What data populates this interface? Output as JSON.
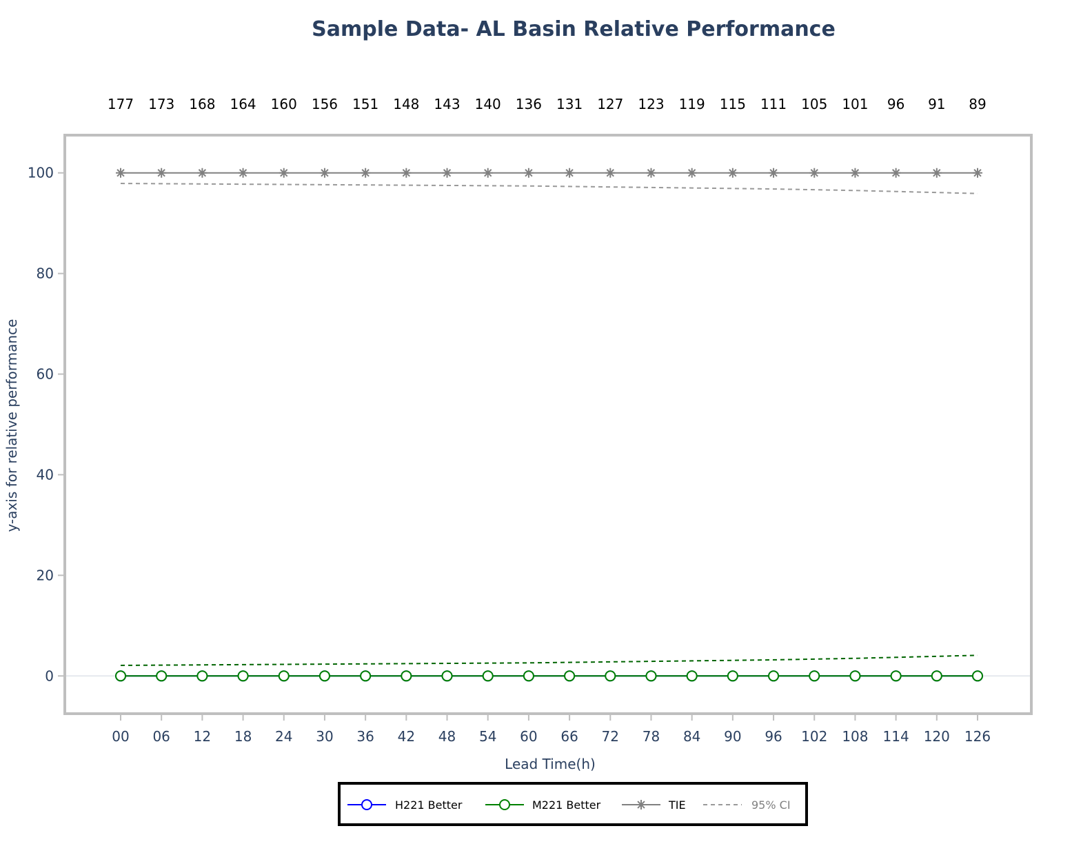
{
  "chart_data": {
    "type": "line",
    "title": "Sample Data- AL Basin Relative Performance",
    "xlabel": "Lead Time(h)",
    "ylabel": "y-axis for relative performance",
    "categories": [
      "00",
      "06",
      "12",
      "18",
      "24",
      "30",
      "36",
      "42",
      "48",
      "54",
      "60",
      "66",
      "72",
      "78",
      "84",
      "90",
      "96",
      "102",
      "108",
      "114",
      "120",
      "126"
    ],
    "top_counts": [
      "177",
      "173",
      "168",
      "164",
      "160",
      "156",
      "151",
      "148",
      "143",
      "140",
      "136",
      "131",
      "127",
      "123",
      "119",
      "115",
      "111",
      "105",
      "101",
      "96",
      "91",
      "89"
    ],
    "ylim": [
      -7.5,
      107.5
    ],
    "yticks": [
      0,
      20,
      40,
      60,
      80,
      100
    ],
    "grid": "zero-line only",
    "legend_position": "bottom-center",
    "colors": {
      "title": "#2a3f5f",
      "axis_text": "#2a3f5f",
      "frame": "#bfbfbf",
      "zeroline": "#e6e9ee",
      "h221": "#0000ff",
      "m221": "#008000",
      "m221_ci": "#006400",
      "tie": "#808080",
      "ci": "#999999"
    },
    "series": [
      {
        "name": "H221 Better",
        "marker": "circle-open",
        "values": [
          0,
          0,
          0,
          0,
          0,
          0,
          0,
          0,
          0,
          0,
          0,
          0,
          0,
          0,
          0,
          0,
          0,
          0,
          0,
          0,
          0,
          0
        ]
      },
      {
        "name": "M221 Better",
        "marker": "circle-open",
        "values": [
          0,
          0,
          0,
          0,
          0,
          0,
          0,
          0,
          0,
          0,
          0,
          0,
          0,
          0,
          0,
          0,
          0,
          0,
          0,
          0,
          0,
          0
        ]
      },
      {
        "name": "TIE",
        "marker": "asterisk-open",
        "values": [
          100,
          100,
          100,
          100,
          100,
          100,
          100,
          100,
          100,
          100,
          100,
          100,
          100,
          100,
          100,
          100,
          100,
          100,
          100,
          100,
          100,
          100
        ]
      },
      {
        "name": "95% CI",
        "dash": "dash"
      }
    ],
    "ci_upper": [
      97.9,
      97.85,
      97.8,
      97.75,
      97.7,
      97.65,
      97.6,
      97.55,
      97.5,
      97.45,
      97.4,
      97.3,
      97.2,
      97.1,
      97.0,
      96.9,
      96.8,
      96.65,
      96.5,
      96.3,
      96.1,
      95.9
    ],
    "ci_lower": [
      2.1,
      2.15,
      2.2,
      2.25,
      2.3,
      2.35,
      2.4,
      2.45,
      2.5,
      2.55,
      2.6,
      2.7,
      2.8,
      2.9,
      3.0,
      3.1,
      3.2,
      3.35,
      3.5,
      3.7,
      3.9,
      4.1
    ]
  }
}
